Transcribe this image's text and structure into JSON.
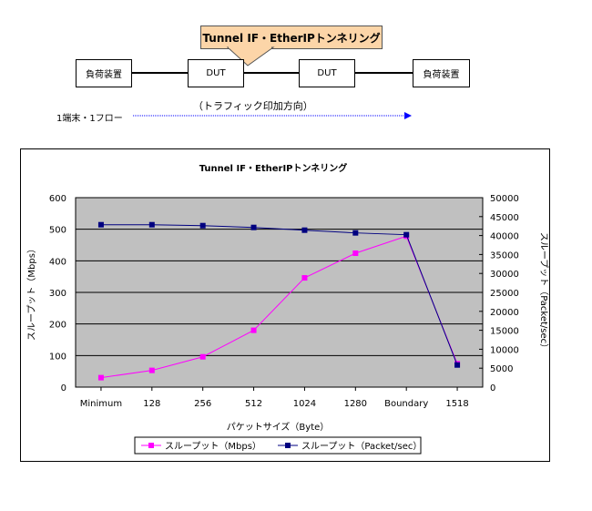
{
  "diagram": {
    "callout": "Tunnel IF・EtherIPトンネリング",
    "left_device": "負荷装置",
    "dut1": "DUT",
    "dut2": "DUT",
    "right_device": "負荷装置",
    "traffic_label": "（トラフィック印加方向）",
    "flow_label": "1端末・1フロー"
  },
  "chart_data": {
    "type": "line",
    "title": "Tunnel IF・EtherIPトンネリング",
    "categories": [
      "Minimum",
      "128",
      "256",
      "512",
      "1024",
      "1280",
      "Boundary",
      "1518"
    ],
    "xlabel": "パケットサイズ（Byte）",
    "ylabel": "スループット（Mbps）",
    "y2label": "スループット（Packet/sec）",
    "ylim": [
      0,
      600
    ],
    "y2lim": [
      0,
      50000
    ],
    "yticks": [
      "0",
      "100",
      "200",
      "300",
      "400",
      "500",
      "600"
    ],
    "y2ticks": [
      "0",
      "5000",
      "10000",
      "15000",
      "20000",
      "25000",
      "30000",
      "35000",
      "40000",
      "45000",
      "50000"
    ],
    "grid": true,
    "legend": "bottom",
    "series": [
      {
        "name": "スループット（Mbps）",
        "axis": "left",
        "color": "#ff00ff",
        "values": [
          30,
          53,
          96,
          180,
          346,
          424,
          478,
          74
        ]
      },
      {
        "name": "スループット（Packet/sec）",
        "axis": "right",
        "color": "#000080",
        "values": [
          42860,
          42860,
          42620,
          42140,
          41420,
          40700,
          40220,
          5840
        ]
      }
    ]
  }
}
